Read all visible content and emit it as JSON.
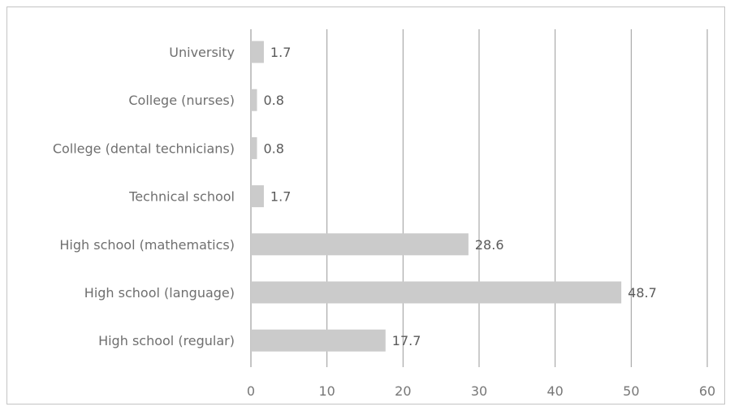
{
  "chart_data": {
    "type": "bar",
    "orientation": "horizontal",
    "categories": [
      "University",
      "College (nurses)",
      "College (dental technicians)",
      "Technical school",
      "High school (mathematics)",
      "High school (language)",
      "High school (regular)"
    ],
    "values": [
      1.7,
      0.8,
      0.8,
      1.7,
      28.6,
      48.7,
      17.7
    ],
    "value_labels": [
      "1.7",
      "0.8",
      "0.8",
      "1.7",
      "28.6",
      "48.7",
      "17.7"
    ],
    "xlim": [
      0,
      60
    ],
    "xticks": [
      0,
      10,
      20,
      30,
      40,
      50,
      60
    ],
    "title": "",
    "xlabel": "",
    "ylabel": "",
    "grid": "vertical",
    "legend": "none",
    "colors": {
      "bar": "#cbcbcb",
      "grid": "#9a9a9a",
      "axis": "#8a8a8a"
    }
  }
}
